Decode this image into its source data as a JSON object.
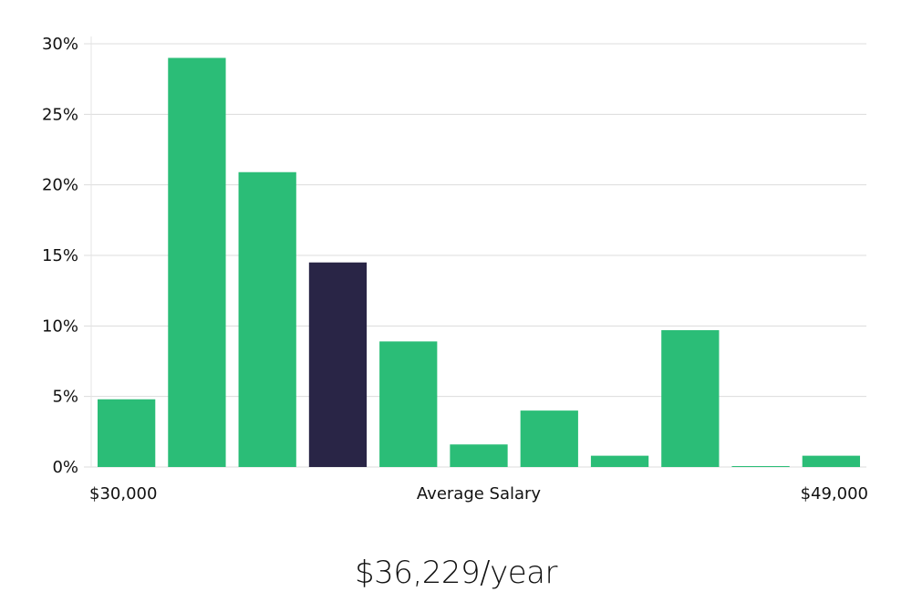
{
  "chart_data": {
    "type": "bar",
    "title": "",
    "xlabel": "Average Salary",
    "ylabel": "",
    "x_range_labels": {
      "min": "$30,000",
      "max": "$49,000"
    },
    "ylim": [
      0,
      30
    ],
    "yticks": [
      0,
      5,
      10,
      15,
      20,
      25,
      30
    ],
    "ytick_labels": [
      "0%",
      "5%",
      "10%",
      "15%",
      "20%",
      "25%",
      "30%"
    ],
    "values": [
      4.8,
      29.0,
      20.9,
      14.5,
      8.9,
      1.6,
      4.0,
      0.8,
      9.7,
      0.05,
      0.8
    ],
    "highlight_index": 3,
    "colors": {
      "bar": "#2bbd77",
      "highlight": "#292546",
      "grid": "#dcdcdc"
    }
  },
  "summary": {
    "salary_text": "$36,229/year"
  }
}
